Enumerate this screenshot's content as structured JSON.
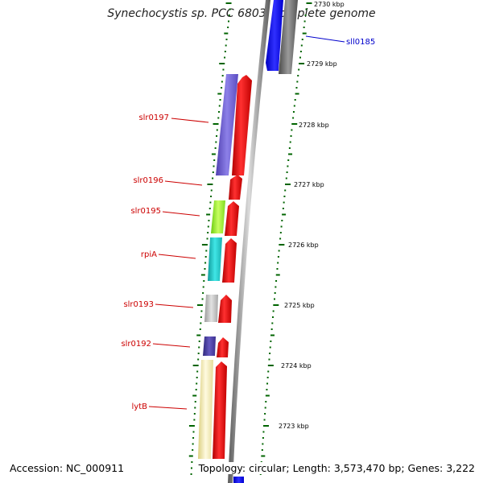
{
  "title": "Synechocystis sp. PCC 6803, complete genome",
  "footer": {
    "accession": "Accession: NC_000911",
    "topology": "Topology: circular; Length: 3,573,470 bp; Genes: 3,222"
  },
  "colors": {
    "backbone": "#8c8c8c",
    "tick": "#006400",
    "forward_gene": "#ff0000",
    "label_red": "#cc0000",
    "label_blue": "#0000cc"
  },
  "scale_labels": [
    "2730 kbp",
    "2729 kbp",
    "2728 kbp",
    "2727 kbp",
    "2726 kbp",
    "2725 kbp",
    "2724 kbp",
    "2723 kbp"
  ],
  "gene_labels": [
    {
      "name": "sll0185",
      "color": "#0000cc"
    },
    {
      "name": "slr0197",
      "color": "#cc0000"
    },
    {
      "name": "slr0196",
      "color": "#cc0000"
    },
    {
      "name": "slr0195",
      "color": "#cc0000"
    },
    {
      "name": "rpiA",
      "color": "#cc0000"
    },
    {
      "name": "slr0193",
      "color": "#cc0000"
    },
    {
      "name": "slr0192",
      "color": "#cc0000"
    },
    {
      "name": "lytB",
      "color": "#cc0000"
    }
  ],
  "cog_colors": [
    "#7060d8",
    "#90ee30",
    "#20c8c8",
    "#c0c0c0",
    "#4a3c9c",
    "#f2e6a0",
    "#0000ff",
    "#707070"
  ]
}
